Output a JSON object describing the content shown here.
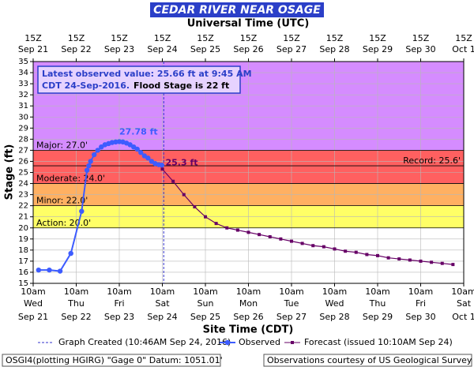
{
  "chart_data": {
    "type": "hydrograph",
    "title": "CEDAR RIVER NEAR OSAGE",
    "x2_label": "Universal Time (UTC)",
    "xlabel": "Site Time (CDT)",
    "ylabel": "Stage (ft)",
    "annotation": {
      "line1": "Latest observed value: 25.66 ft at 9:45 AM",
      "line2a": "CDT 24-Sep-2016.",
      "line2b": "Flood Stage is 22 ft"
    },
    "xlim": [
      "09-21 10:00",
      "10-01 10:00"
    ],
    "ylim": [
      15,
      35
    ],
    "yticks": [
      15,
      16,
      17,
      18,
      19,
      20,
      21,
      22,
      23,
      24,
      25,
      26,
      27,
      28,
      29,
      30,
      31,
      32,
      33,
      34,
      35
    ],
    "grid": true,
    "xticks": [
      {
        "value": "09-21 10:00",
        "time": "10am",
        "day": "Wed",
        "date": "Sep 21"
      },
      {
        "value": "09-22 10:00",
        "time": "10am",
        "day": "Thu",
        "date": "Sep 22"
      },
      {
        "value": "09-23 10:00",
        "time": "10am",
        "day": "Fri",
        "date": "Sep 23"
      },
      {
        "value": "09-24 10:00",
        "time": "10am",
        "day": "Sat",
        "date": "Sep 24"
      },
      {
        "value": "09-25 10:00",
        "time": "10am",
        "day": "Sun",
        "date": "Sep 25"
      },
      {
        "value": "09-26 10:00",
        "time": "10am",
        "day": "Mon",
        "date": "Sep 26"
      },
      {
        "value": "09-27 10:00",
        "time": "10am",
        "day": "Tue",
        "date": "Sep 27"
      },
      {
        "value": "09-28 10:00",
        "time": "10am",
        "day": "Wed",
        "date": "Sep 28"
      },
      {
        "value": "09-29 10:00",
        "time": "10am",
        "day": "Thu",
        "date": "Sep 29"
      },
      {
        "value": "09-30 10:00",
        "time": "10am",
        "day": "Fri",
        "date": "Sep 30"
      },
      {
        "value": "10-01 10:00",
        "time": "10am",
        "day": "Sat",
        "date": "Oct 1"
      }
    ],
    "x2ticks": [
      {
        "value": "09-21 10:00",
        "time": "15Z",
        "date": "Sep 21"
      },
      {
        "value": "09-22 10:00",
        "time": "15Z",
        "date": "Sep 22"
      },
      {
        "value": "09-23 10:00",
        "time": "15Z",
        "date": "Sep 23"
      },
      {
        "value": "09-24 10:00",
        "time": "15Z",
        "date": "Sep 24"
      },
      {
        "value": "09-25 10:00",
        "time": "15Z",
        "date": "Sep 25"
      },
      {
        "value": "09-26 10:00",
        "time": "15Z",
        "date": "Sep 26"
      },
      {
        "value": "09-27 10:00",
        "time": "15Z",
        "date": "Sep 27"
      },
      {
        "value": "09-28 10:00",
        "time": "15Z",
        "date": "Sep 28"
      },
      {
        "value": "09-29 10:00",
        "time": "15Z",
        "date": "Sep 29"
      },
      {
        "value": "09-30 10:00",
        "time": "15Z",
        "date": "Sep 30"
      },
      {
        "value": "10-01 10:00",
        "time": "15Z",
        "date": "Oct 1"
      }
    ],
    "thresholds": [
      {
        "label": "Major: 27.0'",
        "value": 27,
        "color": "#d58cff",
        "side": "left"
      },
      {
        "label": "Moderate: 24.0'",
        "value": 24,
        "color": "#ff6060",
        "side": "left"
      },
      {
        "label": "Minor: 22.0'",
        "value": 22,
        "color": "#ffb062",
        "side": "left"
      },
      {
        "label": "Action: 20.0'",
        "value": 20,
        "color": "#ffff66",
        "side": "left"
      },
      {
        "label": "Record: 25.6'",
        "value": 25.6,
        "color": null,
        "side": "right"
      }
    ],
    "created": {
      "name": "Graph Created (10:46AM Sep 24, 2016)",
      "x": "09-24 10:46",
      "color": "#3333cc"
    },
    "series": [
      {
        "name": "Observed",
        "color": "#3d5cff",
        "point_label": "27.78 ft",
        "x": [
          "09-21 13:00",
          "09-21 19:00",
          "09-22 01:00",
          "09-22 07:00",
          "09-22 13:00",
          "09-22 16:00",
          "09-22 17:00",
          "09-22 18:00",
          "09-22 20:00",
          "09-22 22:00",
          "09-23 00:00",
          "09-23 02:00",
          "09-23 04:00",
          "09-23 06:00",
          "09-23 08:00",
          "09-23 10:00",
          "09-23 12:00",
          "09-23 14:00",
          "09-23 16:00",
          "09-23 18:00",
          "09-23 20:00",
          "09-23 22:00",
          "09-24 00:00",
          "09-24 02:00",
          "09-24 04:00",
          "09-24 06:00",
          "09-24 08:00",
          "09-24 09:45"
        ],
        "values": [
          16.2,
          16.2,
          16.1,
          17.7,
          21.5,
          25.2,
          25.6,
          26.0,
          26.6,
          27.0,
          27.3,
          27.5,
          27.6,
          27.7,
          27.75,
          27.78,
          27.75,
          27.65,
          27.5,
          27.3,
          27.1,
          26.8,
          26.5,
          26.3,
          26.0,
          25.8,
          25.7,
          25.66
        ]
      },
      {
        "name": "Forecast (issued 10:10AM Sep 24)",
        "color": "#660066",
        "point_label": "25.3 ft",
        "x": [
          "09-24 10:00",
          "09-24 16:00",
          "09-24 22:00",
          "09-25 04:00",
          "09-25 10:00",
          "09-25 16:00",
          "09-25 22:00",
          "09-26 04:00",
          "09-26 10:00",
          "09-26 16:00",
          "09-26 22:00",
          "09-27 04:00",
          "09-27 10:00",
          "09-27 16:00",
          "09-27 22:00",
          "09-28 04:00",
          "09-28 10:00",
          "09-28 16:00",
          "09-28 22:00",
          "09-29 04:00",
          "09-29 10:00",
          "09-29 16:00",
          "09-29 22:00",
          "09-30 04:00",
          "09-30 10:00",
          "09-30 16:00",
          "09-30 22:00",
          "10-01 04:00"
        ],
        "values": [
          25.3,
          24.2,
          23.0,
          21.9,
          21.0,
          20.4,
          20.0,
          19.8,
          19.6,
          19.4,
          19.2,
          19.0,
          18.8,
          18.6,
          18.4,
          18.3,
          18.1,
          17.9,
          17.8,
          17.6,
          17.5,
          17.3,
          17.2,
          17.1,
          17.0,
          16.9,
          16.8,
          16.7
        ]
      }
    ],
    "footer_left": "OSGI4(plotting HGIRG) \"Gage 0\" Datum: 1051.01'",
    "footer_right": "Observations courtesy of US Geological Survey"
  }
}
